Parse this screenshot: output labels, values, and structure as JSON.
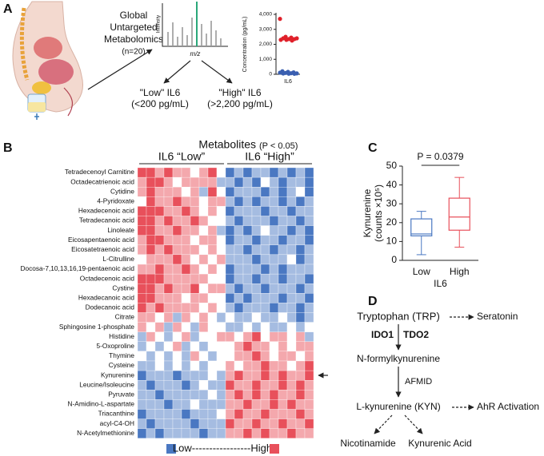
{
  "panel_labels": [
    "A",
    "B",
    "C",
    "D"
  ],
  "panel_a": {
    "study": [
      "Global",
      "Untargeted",
      "Metabolomics",
      "(n=20)"
    ],
    "spectrum_y": "Intensity",
    "spectrum_x": "m/z",
    "low_group": [
      "\"Low\" IL6",
      "(<200 pg/mL)"
    ],
    "high_group": [
      "\"High\" IL6",
      "(>2,200 pg/mL)"
    ]
  },
  "chart_data": [
    {
      "type": "scatter",
      "y_label": "Concentration (pg/mL)",
      "categories": [
        "IL6"
      ],
      "series": [
        {
          "color": "#e0202a",
          "values": [
            3700,
            2500,
            2450,
            2400,
            2400,
            2350,
            2350,
            2300,
            2300,
            2250
          ]
        },
        {
          "color": "#3a5fb0",
          "values": [
            200,
            160,
            130,
            110,
            90,
            70,
            60,
            50,
            40,
            30
          ]
        }
      ],
      "ylim": [
        0,
        4000
      ],
      "yticks": [
        0,
        {
          "value": 1000,
          "label": "1,000"
        },
        {
          "value": 2000,
          "label": "2,000"
        },
        {
          "value": 3000,
          "label": "3,000"
        },
        {
          "value": 4000,
          "label": "4,000"
        }
      ]
    },
    {
      "type": "heatmap",
      "title": "Metabolites",
      "subtitle": "(P < 0.05)",
      "groups": [
        "IL6 “Low”",
        "IL6 “High”"
      ],
      "rows": [
        "Tetradecenoyl Carnitine",
        "Octadecatrienoic acid",
        "Cytidine",
        "4-Pyridoxate",
        "Hexadecenoic acid",
        "Tetradecanoic acid",
        "Linoleate",
        "Eicosapentaenoic acid",
        "Eicosatetraenoic acid",
        "L-Citrulline",
        "Docosa-7,10,13,16,19-pentaenoic acid",
        "Octadecenoic acid",
        "Cystine",
        "Hexadecanoic acid",
        "Dodecanoic acid",
        "Citrate",
        "Sphingosine 1-phosphate",
        "Histidine",
        "5-Oxoproline",
        "Thymine",
        "Cysteine",
        "Kynurenine",
        "Leucine/Isoleucine",
        "Pyruvate",
        "N-Amidino-L-aspartate",
        "Triacanthine",
        "acyl-C4-OH",
        "N-Acetylmethionine"
      ],
      "values": [
        [
          2,
          2,
          1,
          2,
          1,
          1,
          0,
          1,
          2,
          0,
          -2,
          -1,
          -2,
          -1,
          -1,
          -2,
          -1,
          -2,
          -1,
          -2
        ],
        [
          1,
          2,
          2,
          1,
          0,
          1,
          1,
          1,
          1,
          -1,
          -1,
          -2,
          -1,
          -2,
          0,
          -1,
          -2,
          -1,
          -1,
          -2
        ],
        [
          1,
          2,
          1,
          1,
          1,
          0,
          1,
          -1,
          2,
          0,
          -2,
          -1,
          -1,
          -1,
          -2,
          -1,
          -2,
          -1,
          0,
          -2
        ],
        [
          0,
          2,
          1,
          1,
          2,
          1,
          1,
          0,
          1,
          1,
          -1,
          -2,
          -1,
          -2,
          -1,
          -1,
          -2,
          -1,
          -2,
          -1
        ],
        [
          2,
          2,
          2,
          1,
          1,
          2,
          1,
          0,
          1,
          0,
          -2,
          -1,
          -1,
          -1,
          -2,
          -1,
          -1,
          -2,
          -1,
          -1
        ],
        [
          2,
          2,
          1,
          2,
          1,
          1,
          2,
          1,
          0,
          0,
          -1,
          -2,
          -1,
          -1,
          -1,
          -2,
          -1,
          -1,
          -2,
          -1
        ],
        [
          2,
          2,
          1,
          1,
          2,
          1,
          1,
          0,
          1,
          -1,
          -2,
          -1,
          -2,
          -1,
          0,
          -1,
          -1,
          -2,
          -1,
          -2
        ],
        [
          1,
          2,
          2,
          1,
          1,
          1,
          0,
          1,
          1,
          0,
          -2,
          -1,
          -1,
          -2,
          -1,
          -1,
          -2,
          -1,
          -1,
          -2
        ],
        [
          1,
          2,
          1,
          2,
          1,
          1,
          1,
          0,
          1,
          0,
          -1,
          -1,
          -2,
          -1,
          -1,
          -2,
          -1,
          -1,
          -2,
          -1
        ],
        [
          0,
          1,
          1,
          1,
          2,
          1,
          0,
          1,
          0,
          1,
          -1,
          -1,
          -1,
          -2,
          -1,
          -1,
          -1,
          0,
          -2,
          -1
        ],
        [
          1,
          1,
          2,
          1,
          1,
          2,
          1,
          0,
          1,
          0,
          -2,
          -1,
          -1,
          -1,
          -2,
          -1,
          -2,
          -1,
          -1,
          -1
        ],
        [
          2,
          2,
          2,
          1,
          1,
          1,
          1,
          1,
          0,
          0,
          -2,
          -1,
          -1,
          -2,
          -1,
          -1,
          -2,
          -1,
          -1,
          -2
        ],
        [
          2,
          2,
          1,
          2,
          1,
          1,
          2,
          0,
          1,
          1,
          -1,
          -2,
          -1,
          -1,
          -2,
          -1,
          -1,
          -1,
          -2,
          -1
        ],
        [
          2,
          2,
          1,
          1,
          1,
          0,
          1,
          1,
          0,
          0,
          -2,
          -1,
          -2,
          -1,
          -1,
          -1,
          -2,
          -1,
          -1,
          -2
        ],
        [
          2,
          1,
          2,
          1,
          1,
          1,
          1,
          0,
          1,
          0,
          -1,
          -2,
          -1,
          -1,
          -1,
          -2,
          -1,
          -1,
          -2,
          -1
        ],
        [
          1,
          1,
          0,
          1,
          -1,
          1,
          0,
          1,
          0,
          -1,
          0,
          -1,
          -1,
          0,
          -1,
          -1,
          0,
          -1,
          -2,
          -1
        ],
        [
          1,
          0,
          1,
          -1,
          1,
          0,
          -1,
          1,
          0,
          0,
          -1,
          -1,
          0,
          -1,
          0,
          -1,
          -1,
          0,
          -1,
          0
        ],
        [
          -1,
          1,
          0,
          -1,
          0,
          1,
          -1,
          0,
          0,
          1,
          1,
          0,
          1,
          2,
          0,
          1,
          1,
          0,
          1,
          -1
        ],
        [
          -1,
          0,
          -1,
          0,
          1,
          -1,
          0,
          -1,
          0,
          0,
          0,
          1,
          2,
          1,
          1,
          0,
          1,
          0,
          1,
          1
        ],
        [
          0,
          -1,
          0,
          -1,
          0,
          -1,
          1,
          0,
          -1,
          0,
          0,
          1,
          1,
          2,
          1,
          0,
          1,
          1,
          0,
          1
        ],
        [
          -1,
          -1,
          0,
          -1,
          0,
          -1,
          0,
          -1,
          0,
          0,
          1,
          0,
          1,
          1,
          2,
          1,
          1,
          0,
          1,
          2
        ],
        [
          -2,
          -1,
          -1,
          -1,
          -2,
          -1,
          -1,
          -1,
          0,
          -1,
          1,
          2,
          1,
          1,
          2,
          1,
          2,
          1,
          1,
          2
        ],
        [
          -1,
          -2,
          -1,
          -1,
          -1,
          -2,
          -1,
          0,
          -1,
          -1,
          2,
          1,
          1,
          2,
          1,
          1,
          2,
          1,
          2,
          1
        ],
        [
          -1,
          -1,
          -2,
          -1,
          -1,
          -1,
          -1,
          -1,
          0,
          -1,
          1,
          2,
          1,
          2,
          1,
          2,
          1,
          1,
          2,
          1
        ],
        [
          -1,
          -1,
          -1,
          -2,
          -1,
          -1,
          0,
          -1,
          -1,
          -1,
          1,
          1,
          2,
          1,
          1,
          2,
          1,
          2,
          1,
          1
        ],
        [
          -2,
          -1,
          -1,
          -1,
          -1,
          -2,
          -1,
          -1,
          -1,
          0,
          1,
          2,
          1,
          1,
          2,
          1,
          1,
          1,
          2,
          1
        ],
        [
          -1,
          -2,
          -1,
          -1,
          -1,
          -1,
          -2,
          -1,
          -1,
          -1,
          2,
          1,
          1,
          2,
          1,
          1,
          2,
          1,
          1,
          2
        ],
        [
          -2,
          -1,
          -2,
          -1,
          -1,
          -1,
          -1,
          -2,
          -1,
          -1,
          1,
          1,
          2,
          1,
          2,
          1,
          1,
          2,
          1,
          1
        ]
      ],
      "colors": {
        "low": "#4a78c2",
        "high": "#e8505b"
      },
      "legend_label": "Low-----------------High"
    },
    {
      "type": "box",
      "y_label": [
        "Kynurenine",
        "(counts ×10⁵)"
      ],
      "x_label": "IL6",
      "categories": [
        "Low",
        "High"
      ],
      "boxes": [
        {
          "min": 3,
          "q1": 13,
          "median": 14,
          "q3": 22,
          "max": 26
        },
        {
          "min": 7,
          "q1": 16,
          "median": 23,
          "q3": 33,
          "max": 44
        }
      ],
      "colors": [
        "#4a78c2",
        "#e8505b"
      ],
      "ylim": [
        0,
        50
      ],
      "yticks": [
        0,
        10,
        20,
        30,
        40,
        50
      ],
      "annotation": "P = 0.0379"
    }
  ],
  "pathway": {
    "nodes": [
      "Tryptophan (TRP)",
      "Seratonin",
      "N-formylkynurenine",
      "L-kynurenine (KYN)",
      "AhR Activation",
      "Nicotinamide",
      "Kynurenic Acid"
    ],
    "enzymes": [
      "IDO1",
      "TDO2",
      "AFMID"
    ]
  }
}
